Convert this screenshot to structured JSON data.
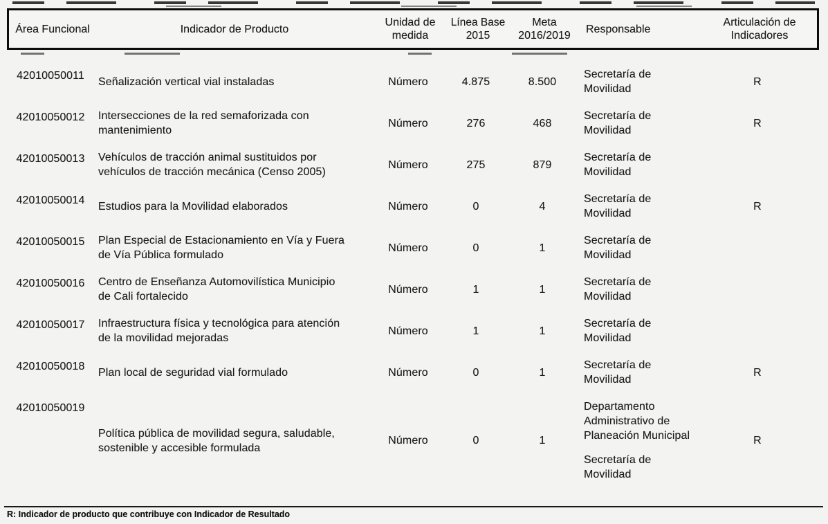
{
  "table": {
    "headers": [
      {
        "key": "area-funcional",
        "label": "Área Funcional"
      },
      {
        "key": "indicador-de-producto",
        "label": "Indicador de Producto"
      },
      {
        "key": "unidad-de-medida",
        "label": "Unidad de medida"
      },
      {
        "key": "linea-base-2015",
        "label": "Línea Base 2015"
      },
      {
        "key": "meta-2016-2019",
        "label": "Meta 2016/2019"
      },
      {
        "key": "responsable",
        "label": "Responsable"
      },
      {
        "key": "articulacion-de-indicadores",
        "label": "Articulación de Indicadores"
      }
    ],
    "rows": [
      {
        "area": "42010050011",
        "indicador": "Señalización vertical vial instaladas",
        "unidad": "Número",
        "linea_base": "4.875",
        "meta": "8.500",
        "responsable": [
          "Secretaría de Movilidad"
        ],
        "articulacion": "R"
      },
      {
        "area": "42010050012",
        "indicador": "Intersecciones de la red semaforizada con mantenimiento",
        "unidad": "Número",
        "linea_base": "276",
        "meta": "468",
        "responsable": [
          "Secretaría de Movilidad"
        ],
        "articulacion": "R"
      },
      {
        "area": "42010050013",
        "indicador": "Vehículos de tracción animal sustituidos por vehículos de tracción mecánica (Censo 2005)",
        "unidad": "Número",
        "linea_base": "275",
        "meta": "879",
        "responsable": [
          "Secretaría de Movilidad"
        ],
        "articulacion": ""
      },
      {
        "area": "42010050014",
        "indicador": "Estudios para la Movilidad elaborados",
        "unidad": "Número",
        "linea_base": "0",
        "meta": "4",
        "responsable": [
          "Secretaría de Movilidad"
        ],
        "articulacion": "R"
      },
      {
        "area": "42010050015",
        "indicador": "Plan Especial de Estacionamiento en Vía y Fuera de Vía Pública formulado",
        "unidad": "Número",
        "linea_base": "0",
        "meta": "1",
        "responsable": [
          "Secretaría de Movilidad"
        ],
        "articulacion": ""
      },
      {
        "area": "42010050016",
        "indicador": "Centro de Enseñanza Automovilística Municipio de Cali fortalecido",
        "unidad": "Número",
        "linea_base": "1",
        "meta": "1",
        "responsable": [
          "Secretaría de Movilidad"
        ],
        "articulacion": ""
      },
      {
        "area": "42010050017",
        "indicador": "Infraestructura física y tecnológica para atención de la movilidad mejoradas",
        "unidad": "Número",
        "linea_base": "1",
        "meta": "1",
        "responsable": [
          "Secretaría de Movilidad"
        ],
        "articulacion": ""
      },
      {
        "area": "42010050018",
        "indicador": "Plan local de seguridad vial formulado",
        "unidad": "Número",
        "linea_base": "0",
        "meta": "1",
        "responsable": [
          "Secretaría de Movilidad"
        ],
        "articulacion": "R"
      },
      {
        "area": "42010050019",
        "indicador": "Política pública de movilidad segura, saludable, sostenible y accesible formulada",
        "unidad": "Número",
        "linea_base": "0",
        "meta": "1",
        "responsable": [
          "Departamento Administrativo de Planeación Municipal",
          "Secretaría de Movilidad"
        ],
        "articulacion": "R"
      }
    ]
  },
  "footnote": "R: Indicador de producto que contribuye con Indicador de Resultado"
}
